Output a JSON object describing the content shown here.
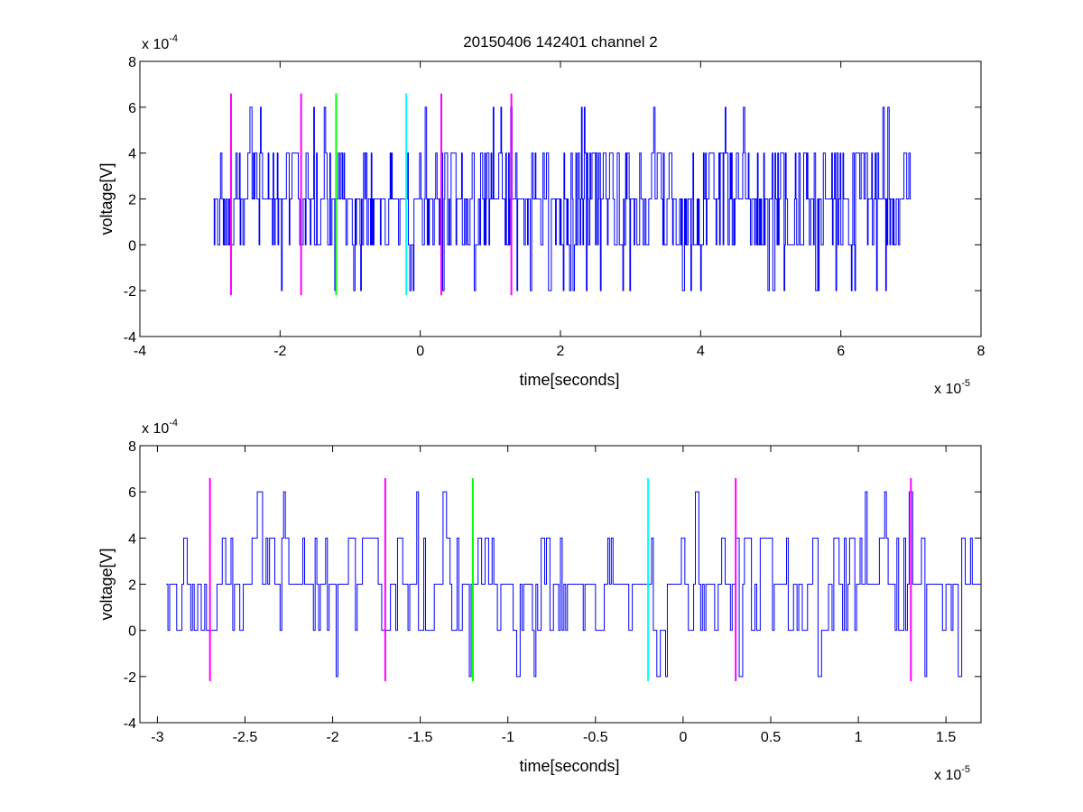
{
  "chart_data": [
    {
      "type": "line",
      "title": "20150406 142401 channel 2",
      "xlabel": "time[seconds]",
      "ylabel": "voltage[V]",
      "xlim": [
        -4e-05,
        8e-05
      ],
      "ylim": [
        -0.0004,
        0.0008
      ],
      "x_scale_label": "x 10",
      "x_scale_exp": "-5",
      "y_scale_label": "x 10",
      "y_scale_exp": "-4",
      "x_ticks": [
        -4,
        -2,
        0,
        2,
        4,
        6,
        8
      ],
      "y_ticks": [
        -4,
        -2,
        0,
        2,
        4,
        6,
        8
      ],
      "signal": {
        "color": "#0000ff",
        "x_start": -2.95e-05,
        "x_end": 7e-05,
        "sample_step": 1e-07,
        "levels_volts": [
          -0.0002,
          0,
          0.0002,
          0.0004,
          0.0006
        ]
      },
      "markers": [
        {
          "x": -2.7e-05,
          "color": "#ff00ff"
        },
        {
          "x": -1.7e-05,
          "color": "#ff00ff"
        },
        {
          "x": -1.2e-05,
          "color": "#00ff00"
        },
        {
          "x": -2e-06,
          "color": "#00ffff"
        },
        {
          "x": 3e-06,
          "color": "#ff00ff"
        },
        {
          "x": 1.3e-05,
          "color": "#ff00ff"
        }
      ],
      "marker_range": [
        -0.00022,
        0.00066
      ]
    },
    {
      "type": "line",
      "title": "",
      "xlabel": "time[seconds]",
      "ylabel": "voltage[V]",
      "xlim": [
        -3.1e-05,
        1.7e-05
      ],
      "ylim": [
        -0.0004,
        0.0008
      ],
      "x_scale_label": "x 10",
      "x_scale_exp": "-5",
      "y_scale_label": "x 10",
      "y_scale_exp": "-4",
      "x_ticks": [
        -3,
        -2.5,
        -2,
        -1.5,
        -1,
        -0.5,
        0,
        0.5,
        1,
        1.5
      ],
      "y_ticks": [
        -4,
        -2,
        0,
        2,
        4,
        6,
        8
      ],
      "signal": {
        "color": "#0000ff",
        "x_start": -2.95e-05,
        "x_end": 1.7e-05,
        "sample_step": 1e-07,
        "levels_volts": [
          -0.0002,
          0,
          0.0002,
          0.0004,
          0.0006
        ]
      },
      "markers": [
        {
          "x": -2.7e-05,
          "color": "#ff00ff"
        },
        {
          "x": -1.7e-05,
          "color": "#ff00ff"
        },
        {
          "x": -1.2e-05,
          "color": "#00ff00"
        },
        {
          "x": -2e-06,
          "color": "#00ffff"
        },
        {
          "x": 3e-06,
          "color": "#ff00ff"
        },
        {
          "x": 1.3e-05,
          "color": "#ff00ff"
        }
      ],
      "marker_range": [
        -0.00022,
        0.00066
      ]
    }
  ]
}
